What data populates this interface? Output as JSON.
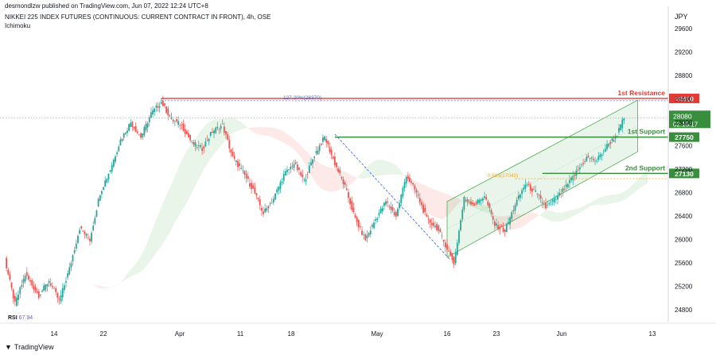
{
  "header": {
    "published": "desmondlzw published on TradingView.com, Jun 07, 2022 12:24 UTC+8",
    "symbol": "NIKKEI 225 INDEX FUTURES (CONTINUOUS: CURRENT CONTRACT IN FRONT), 4h, OSE",
    "indicator": "Ichimoku"
  },
  "footer": {
    "logo": "TradingView",
    "rsi_label": "RSI",
    "rsi_value": "67.94"
  },
  "chart_data": {
    "type": "line",
    "currency": "JPY",
    "y_ticks": [
      24800,
      25200,
      25600,
      26000,
      26400,
      26800,
      27200,
      27600,
      28000,
      28400,
      28800,
      29200,
      29600
    ],
    "x_tick_labels": [
      "14",
      "22",
      "Apr",
      "11",
      "18",
      "May",
      "16",
      "23",
      "Jun",
      "13"
    ],
    "ylim": [
      24600,
      29900
    ],
    "price_path": [
      [
        0,
        25650
      ],
      [
        6,
        24900
      ],
      [
        12,
        25400
      ],
      [
        20,
        25050
      ],
      [
        26,
        25300
      ],
      [
        32,
        24950
      ],
      [
        38,
        25500
      ],
      [
        44,
        26200
      ],
      [
        50,
        26000
      ],
      [
        56,
        26800
      ],
      [
        62,
        27200
      ],
      [
        68,
        27700
      ],
      [
        74,
        28000
      ],
      [
        80,
        27750
      ],
      [
        86,
        28150
      ],
      [
        92,
        28350
      ],
      [
        98,
        28050
      ],
      [
        104,
        27950
      ],
      [
        110,
        27650
      ],
      [
        116,
        27550
      ],
      [
        122,
        27850
      ],
      [
        128,
        27950
      ],
      [
        134,
        27400
      ],
      [
        140,
        27150
      ],
      [
        146,
        26850
      ],
      [
        152,
        26450
      ],
      [
        158,
        26700
      ],
      [
        164,
        27100
      ],
      [
        170,
        27300
      ],
      [
        176,
        27000
      ],
      [
        182,
        27450
      ],
      [
        188,
        27750
      ],
      [
        194,
        27300
      ],
      [
        200,
        26900
      ],
      [
        206,
        26350
      ],
      [
        212,
        26000
      ],
      [
        218,
        26350
      ],
      [
        224,
        26650
      ],
      [
        230,
        26400
      ],
      [
        236,
        27100
      ],
      [
        242,
        26800
      ],
      [
        248,
        26350
      ],
      [
        254,
        26200
      ],
      [
        260,
        25850
      ],
      [
        264,
        25600
      ],
      [
        270,
        26700
      ],
      [
        276,
        26600
      ],
      [
        282,
        26750
      ],
      [
        288,
        26250
      ],
      [
        294,
        26150
      ],
      [
        300,
        26600
      ],
      [
        306,
        26950
      ],
      [
        312,
        26800
      ],
      [
        318,
        26550
      ],
      [
        324,
        26700
      ],
      [
        330,
        26900
      ],
      [
        336,
        27150
      ],
      [
        342,
        27400
      ],
      [
        348,
        27350
      ],
      [
        354,
        27600
      ],
      [
        360,
        27800
      ],
      [
        364,
        28080
      ]
    ],
    "resistance": {
      "label": "1st Resistance",
      "value": 28410,
      "fib_text": "127.20%(28370)"
    },
    "support1": {
      "label": "1st Support",
      "value": 27750
    },
    "support2": {
      "label": "2nd Support",
      "value": 27130,
      "fib_text": "0.618(27040)"
    },
    "current": {
      "value": 28080,
      "countdown": "02:15:17"
    },
    "colors": {
      "resistance": "#e53935",
      "support": "#388e3c",
      "up": "#26a69a",
      "down": "#ef5350",
      "channel": "#4caf50"
    }
  }
}
